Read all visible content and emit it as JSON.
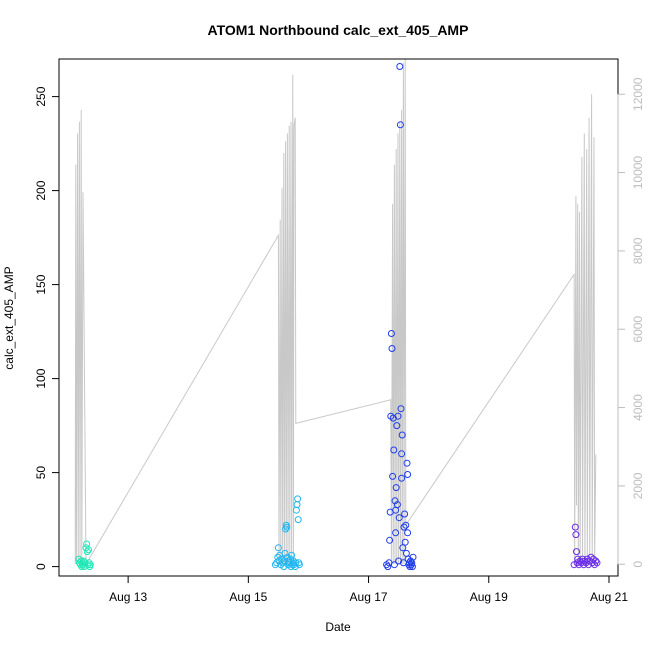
{
  "chart_data": {
    "type": "scatter",
    "title": "ATOM1 Northbound calc_ext_405_AMP",
    "xlabel": "Date",
    "ylabel": "calc_ext_405_AMP",
    "x_ticks": [
      "Aug 13",
      "Aug 15",
      "Aug 17",
      "Aug 19",
      "Aug 21"
    ],
    "y_ticks": [
      0,
      50,
      100,
      150,
      200,
      250
    ],
    "y2_ticks": [
      0,
      2000,
      4000,
      6000,
      8000,
      10000,
      12000
    ],
    "xlim_days": [
      11.85,
      21.15
    ],
    "ylim": [
      -5,
      270
    ],
    "y2lim": [
      -300,
      12900
    ],
    "secondary_series_color": "#c8c8c8",
    "grid": false,
    "legend": "none",
    "bursts": [
      {
        "color": "#1DE9B6",
        "points": [
          [
            12.18,
            4
          ],
          [
            12.19,
            2
          ],
          [
            12.21,
            1
          ],
          [
            12.22,
            3
          ],
          [
            12.23,
            0
          ],
          [
            12.24,
            2
          ],
          [
            12.25,
            1
          ],
          [
            12.26,
            3
          ],
          [
            12.27,
            0
          ],
          [
            12.28,
            2
          ],
          [
            12.3,
            10
          ],
          [
            12.31,
            12
          ],
          [
            12.32,
            8
          ],
          [
            12.33,
            1
          ],
          [
            12.34,
            9
          ],
          [
            12.35,
            2
          ],
          [
            12.36,
            0
          ],
          [
            12.37,
            1
          ]
        ]
      },
      {
        "color": "#21B6F0",
        "points": [
          [
            15.45,
            1
          ],
          [
            15.47,
            2
          ],
          [
            15.49,
            5
          ],
          [
            15.5,
            10
          ],
          [
            15.51,
            3
          ],
          [
            15.52,
            6
          ],
          [
            15.54,
            1
          ],
          [
            15.55,
            4
          ],
          [
            15.57,
            2
          ],
          [
            15.59,
            0
          ],
          [
            15.6,
            3
          ],
          [
            15.61,
            7
          ],
          [
            15.62,
            20
          ],
          [
            15.63,
            22
          ],
          [
            15.64,
            21
          ],
          [
            15.65,
            5
          ],
          [
            15.66,
            1
          ],
          [
            15.67,
            3
          ],
          [
            15.68,
            2
          ],
          [
            15.7,
            4
          ],
          [
            15.71,
            0
          ],
          [
            15.72,
            6
          ],
          [
            15.73,
            1
          ],
          [
            15.74,
            2
          ],
          [
            15.75,
            3
          ],
          [
            15.76,
            1
          ],
          [
            15.78,
            0
          ],
          [
            15.79,
            2
          ],
          [
            15.8,
            30
          ],
          [
            15.81,
            33
          ],
          [
            15.82,
            36
          ],
          [
            15.83,
            25
          ],
          [
            15.84,
            2
          ],
          [
            15.85,
            1
          ]
        ]
      },
      {
        "color": "#1F3BEB",
        "points": [
          [
            17.3,
            1
          ],
          [
            17.32,
            0
          ],
          [
            17.34,
            2
          ],
          [
            17.36,
            29
          ],
          [
            17.37,
            80
          ],
          [
            17.38,
            124
          ],
          [
            17.39,
            116
          ],
          [
            17.4,
            48
          ],
          [
            17.41,
            79
          ],
          [
            17.42,
            62
          ],
          [
            17.43,
            1
          ],
          [
            17.44,
            35
          ],
          [
            17.45,
            18
          ],
          [
            17.46,
            42
          ],
          [
            17.47,
            75
          ],
          [
            17.48,
            33
          ],
          [
            17.49,
            80
          ],
          [
            17.5,
            3
          ],
          [
            17.51,
            26
          ],
          [
            17.52,
            266
          ],
          [
            17.53,
            235
          ],
          [
            17.54,
            84
          ],
          [
            17.55,
            60
          ],
          [
            17.56,
            70
          ],
          [
            17.57,
            10
          ],
          [
            17.58,
            2
          ],
          [
            17.59,
            21
          ],
          [
            17.6,
            28
          ],
          [
            17.61,
            13
          ],
          [
            17.62,
            22
          ],
          [
            17.63,
            7
          ],
          [
            17.64,
            55
          ],
          [
            17.65,
            49
          ],
          [
            17.66,
            4
          ],
          [
            17.67,
            1
          ],
          [
            17.68,
            2
          ],
          [
            17.69,
            0
          ],
          [
            17.7,
            3
          ],
          [
            17.71,
            1
          ],
          [
            17.72,
            2
          ],
          [
            17.73,
            0
          ],
          [
            17.74,
            5
          ],
          [
            17.35,
            14
          ],
          [
            17.45,
            30
          ],
          [
            17.55,
            47
          ],
          [
            17.65,
            18
          ]
        ]
      },
      {
        "color": "#6A2BE8",
        "points": [
          [
            20.42,
            1
          ],
          [
            20.44,
            21
          ],
          [
            20.45,
            17
          ],
          [
            20.46,
            8
          ],
          [
            20.47,
            2
          ],
          [
            20.48,
            4
          ],
          [
            20.5,
            1
          ],
          [
            20.52,
            3
          ],
          [
            20.54,
            2
          ],
          [
            20.56,
            4
          ],
          [
            20.58,
            1
          ],
          [
            20.6,
            3
          ],
          [
            20.62,
            2
          ],
          [
            20.64,
            4
          ],
          [
            20.66,
            1
          ],
          [
            20.68,
            3
          ],
          [
            20.7,
            5
          ],
          [
            20.72,
            2
          ],
          [
            20.74,
            4
          ],
          [
            20.76,
            1
          ],
          [
            20.78,
            3
          ],
          [
            20.8,
            2
          ]
        ]
      }
    ],
    "secondary_line": [
      [
        12.12,
        0
      ],
      [
        12.13,
        10200
      ],
      [
        12.14,
        0
      ],
      [
        12.16,
        11000
      ],
      [
        12.17,
        0
      ],
      [
        12.19,
        11300
      ],
      [
        12.2,
        0
      ],
      [
        12.22,
        11600
      ],
      [
        12.23,
        0
      ],
      [
        12.25,
        9500
      ],
      [
        12.3,
        0
      ],
      [
        15.5,
        8400
      ],
      [
        15.51,
        0
      ],
      [
        15.53,
        8800
      ],
      [
        15.54,
        0
      ],
      [
        15.56,
        9600
      ],
      [
        15.57,
        0
      ],
      [
        15.59,
        10500
      ],
      [
        15.6,
        0
      ],
      [
        15.62,
        10800
      ],
      [
        15.63,
        0
      ],
      [
        15.65,
        11000
      ],
      [
        15.66,
        0
      ],
      [
        15.68,
        11200
      ],
      [
        15.69,
        0
      ],
      [
        15.71,
        11300
      ],
      [
        15.72,
        0
      ],
      [
        15.74,
        12500
      ],
      [
        15.75,
        0
      ],
      [
        15.76,
        11200
      ],
      [
        15.78,
        11400
      ],
      [
        15.79,
        3600
      ],
      [
        17.37,
        4200
      ],
      [
        17.38,
        0
      ],
      [
        17.4,
        9200
      ],
      [
        17.41,
        0
      ],
      [
        17.43,
        10200
      ],
      [
        17.44,
        0
      ],
      [
        17.46,
        10600
      ],
      [
        17.47,
        0
      ],
      [
        17.49,
        11000
      ],
      [
        17.5,
        0
      ],
      [
        17.52,
        11300
      ],
      [
        17.53,
        0
      ],
      [
        17.55,
        11600
      ],
      [
        17.56,
        0
      ],
      [
        17.58,
        12800
      ],
      [
        17.59,
        0
      ],
      [
        17.61,
        12900
      ],
      [
        17.62,
        1000
      ],
      [
        20.42,
        7400
      ],
      [
        20.43,
        0
      ],
      [
        20.45,
        9400
      ],
      [
        20.46,
        1500
      ],
      [
        20.48,
        9200
      ],
      [
        20.49,
        0
      ],
      [
        20.51,
        9000
      ],
      [
        20.52,
        0
      ],
      [
        20.55,
        10400
      ],
      [
        20.56,
        0
      ],
      [
        20.59,
        11000
      ],
      [
        20.6,
        0
      ],
      [
        20.63,
        10600
      ],
      [
        20.64,
        0
      ],
      [
        20.67,
        11400
      ],
      [
        20.68,
        0
      ],
      [
        20.71,
        12000
      ],
      [
        20.72,
        0
      ],
      [
        20.75,
        10900
      ],
      [
        20.76,
        0
      ],
      [
        20.78,
        2800
      ]
    ]
  }
}
